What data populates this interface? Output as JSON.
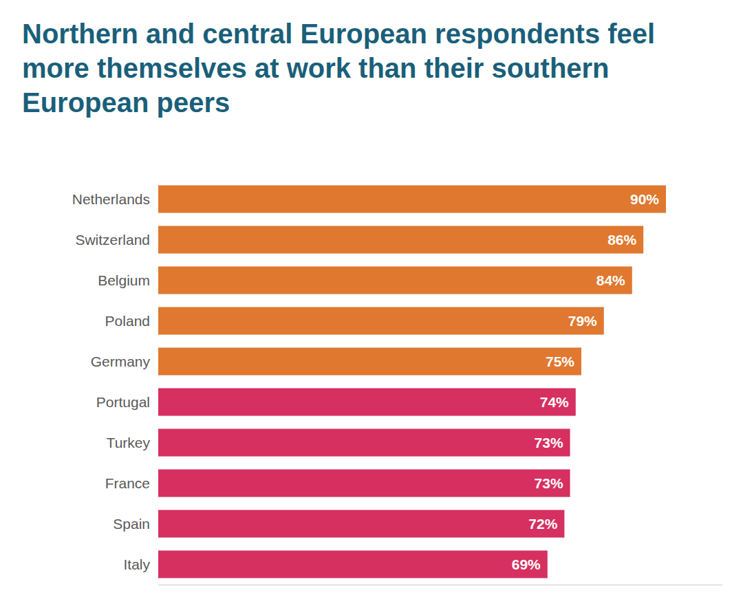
{
  "chart_data": {
    "type": "bar",
    "orientation": "horizontal",
    "title": "Northern and central European respondents feel more themselves at work than their southern European peers",
    "categories": [
      "Netherlands",
      "Switzerland",
      "Belgium",
      "Poland",
      "Germany",
      "Portugal",
      "Turkey",
      "France",
      "Spain",
      "Italy"
    ],
    "values": [
      90,
      86,
      84,
      79,
      75,
      74,
      73,
      73,
      72,
      69
    ],
    "value_labels": [
      "90%",
      "86%",
      "84%",
      "79%",
      "75%",
      "74%",
      "73%",
      "73%",
      "72%",
      "69%"
    ],
    "colors": [
      "#E07830",
      "#E07830",
      "#E07830",
      "#E07830",
      "#E07830",
      "#D63060",
      "#D63060",
      "#D63060",
      "#D63060",
      "#D63060"
    ],
    "xlim": [
      0,
      100
    ],
    "data_labels": true,
    "tick_labels": "y",
    "grid": false
  }
}
